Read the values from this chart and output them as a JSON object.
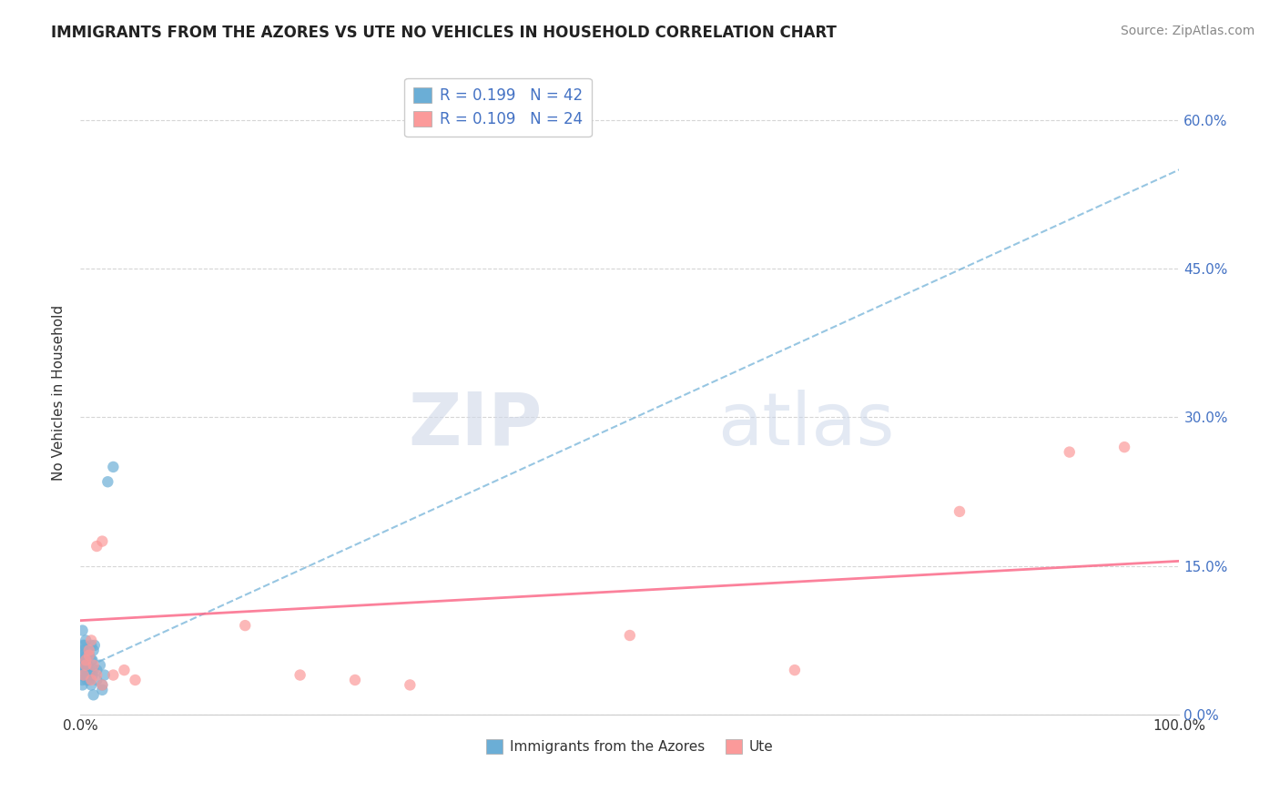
{
  "title": "IMMIGRANTS FROM THE AZORES VS UTE NO VEHICLES IN HOUSEHOLD CORRELATION CHART",
  "source_text": "Source: ZipAtlas.com",
  "xlabel": "",
  "ylabel": "No Vehicles in Household",
  "legend1_label": "Immigrants from the Azores",
  "legend2_label": "Ute",
  "R_azores": 0.199,
  "N_azores": 42,
  "R_ute": 0.109,
  "N_ute": 24,
  "xlim": [
    0,
    100
  ],
  "ylim": [
    0,
    65
  ],
  "yticks": [
    0,
    15,
    30,
    45,
    60
  ],
  "ytick_labels": [
    "0.0%",
    "15.0%",
    "30.0%",
    "45.0%",
    "60.0%"
  ],
  "xtick_labels": [
    "0.0%",
    "100.0%"
  ],
  "color_azores": "#6baed6",
  "color_ute": "#fb9a9a",
  "trend_color_azores": "#6baed6",
  "trend_color_ute": "#fb6b8a",
  "watermark_zip": "ZIP",
  "watermark_atlas": "atlas",
  "background_color": "#ffffff",
  "azores_x": [
    0.1,
    0.15,
    0.2,
    0.2,
    0.3,
    0.3,
    0.3,
    0.4,
    0.5,
    0.5,
    0.5,
    0.6,
    0.6,
    0.7,
    0.8,
    0.8,
    0.9,
    1.0,
    1.0,
    1.1,
    1.1,
    1.2,
    1.2,
    1.3,
    1.5,
    1.5,
    1.8,
    2.0,
    2.0,
    2.2,
    2.5,
    3.0,
    0.1,
    0.15,
    0.2,
    0.25,
    0.3,
    0.4,
    0.6,
    0.8,
    1.0,
    1.2
  ],
  "azores_y": [
    5.5,
    6.0,
    3.5,
    8.5,
    4.0,
    5.5,
    6.5,
    7.0,
    4.5,
    5.0,
    7.5,
    6.0,
    3.5,
    5.0,
    3.5,
    6.0,
    4.5,
    5.5,
    7.0,
    4.0,
    5.5,
    4.5,
    6.5,
    7.0,
    3.5,
    4.5,
    5.0,
    3.0,
    2.5,
    4.0,
    23.5,
    25.0,
    4.0,
    5.0,
    3.0,
    7.0,
    6.0,
    5.0,
    4.0,
    4.0,
    3.0,
    2.0
  ],
  "ute_x": [
    0.5,
    0.8,
    1.0,
    1.2,
    1.5,
    2.0,
    3.0,
    4.0,
    5.0,
    0.3,
    0.5,
    0.8,
    1.0,
    1.5,
    2.0,
    15.0,
    20.0,
    25.0,
    30.0,
    50.0,
    65.0,
    80.0,
    90.0,
    95.0
  ],
  "ute_y": [
    5.0,
    6.5,
    3.5,
    5.0,
    17.0,
    17.5,
    4.0,
    4.5,
    3.5,
    4.0,
    5.5,
    6.0,
    7.5,
    4.0,
    3.0,
    9.0,
    4.0,
    3.5,
    3.0,
    8.0,
    4.5,
    20.5,
    26.5,
    27.0
  ],
  "azores_trend": [
    0,
    100
  ],
  "azores_trend_y": [
    4.5,
    55.0
  ],
  "ute_trend": [
    0,
    100
  ],
  "ute_trend_y": [
    9.5,
    15.5
  ]
}
